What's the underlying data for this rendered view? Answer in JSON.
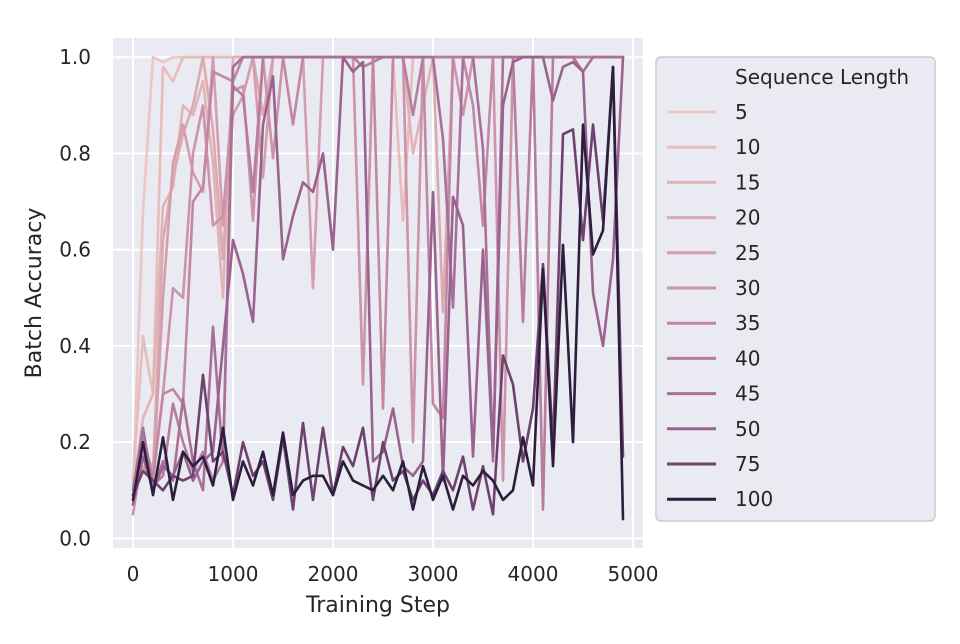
{
  "chart_data": {
    "type": "line",
    "title": "",
    "xlabel": "Training Step",
    "ylabel": "Batch Accuracy",
    "xlim": [
      -200,
      5100
    ],
    "ylim": [
      -0.02,
      1.04
    ],
    "xticks": [
      0,
      1000,
      2000,
      3000,
      4000,
      5000
    ],
    "xtick_labels": [
      "0",
      "1000",
      "2000",
      "3000",
      "4000",
      "5000"
    ],
    "yticks": [
      0.0,
      0.2,
      0.4,
      0.6,
      0.8,
      1.0
    ],
    "ytick_labels": [
      "0.0",
      "0.2",
      "0.4",
      "0.6",
      "0.8",
      "1.0"
    ],
    "grid": true,
    "legend_title": "Sequence Length",
    "legend_position": "outside-right",
    "x": [
      0,
      100,
      200,
      300,
      400,
      500,
      600,
      700,
      800,
      900,
      1000,
      1100,
      1200,
      1300,
      1400,
      1500,
      1600,
      1700,
      1800,
      1900,
      2000,
      2100,
      2200,
      2300,
      2400,
      2500,
      2600,
      2700,
      2800,
      2900,
      3000,
      3100,
      3200,
      3300,
      3400,
      3500,
      3600,
      3700,
      3800,
      3900,
      4000,
      4100,
      4200,
      4300,
      4400,
      4500,
      4600,
      4700,
      4800,
      4900
    ],
    "series": [
      {
        "name": "5",
        "color": "#ebc6c2",
        "values": [
          0.1,
          0.68,
          1.0,
          0.99,
          1.0,
          1.0,
          1.0,
          1.0,
          1.0,
          1.0,
          1.0,
          1.0,
          1.0,
          1.0,
          1.0,
          1.0,
          1.0,
          1.0,
          1.0,
          1.0,
          1.0,
          1.0,
          1.0,
          1.0,
          1.0,
          1.0,
          1.0,
          1.0,
          1.0,
          1.0,
          1.0,
          1.0,
          1.0,
          1.0,
          1.0,
          1.0,
          1.0,
          1.0,
          1.0,
          1.0,
          1.0,
          1.0,
          1.0,
          1.0,
          1.0,
          1.0,
          1.0,
          1.0,
          1.0,
          1.0
        ]
      },
      {
        "name": "10",
        "color": "#e6bdbb",
        "values": [
          0.12,
          0.42,
          0.3,
          0.98,
          0.95,
          1.0,
          1.0,
          1.0,
          1.0,
          1.0,
          1.0,
          1.0,
          1.0,
          1.0,
          1.0,
          1.0,
          1.0,
          1.0,
          1.0,
          1.0,
          1.0,
          1.0,
          1.0,
          1.0,
          1.0,
          1.0,
          1.0,
          0.66,
          1.0,
          1.0,
          1.0,
          1.0,
          1.0,
          1.0,
          1.0,
          1.0,
          1.0,
          1.0,
          1.0,
          1.0,
          1.0,
          1.0,
          1.0,
          1.0,
          1.0,
          1.0,
          1.0,
          1.0,
          1.0,
          1.0
        ]
      },
      {
        "name": "15",
        "color": "#e1b3b5",
        "values": [
          0.1,
          0.25,
          0.3,
          0.69,
          0.73,
          0.9,
          0.88,
          0.95,
          0.78,
          0.5,
          1.0,
          1.0,
          1.0,
          1.0,
          1.0,
          1.0,
          1.0,
          1.0,
          1.0,
          1.0,
          1.0,
          1.0,
          1.0,
          1.0,
          1.0,
          1.0,
          1.0,
          1.0,
          0.8,
          0.9,
          1.0,
          1.0,
          1.0,
          1.0,
          1.0,
          1.0,
          1.0,
          1.0,
          1.0,
          1.0,
          1.0,
          1.0,
          1.0,
          1.0,
          1.0,
          1.0,
          1.0,
          1.0,
          1.0,
          1.0
        ]
      },
      {
        "name": "20",
        "color": "#dba9b0",
        "values": [
          0.11,
          0.2,
          0.14,
          0.62,
          0.75,
          0.84,
          0.9,
          1.0,
          0.85,
          0.58,
          0.95,
          1.0,
          1.0,
          0.88,
          1.0,
          1.0,
          1.0,
          1.0,
          1.0,
          1.0,
          1.0,
          1.0,
          1.0,
          1.0,
          1.0,
          1.0,
          1.0,
          1.0,
          1.0,
          1.0,
          1.0,
          0.47,
          1.0,
          1.0,
          1.0,
          1.0,
          1.0,
          1.0,
          1.0,
          1.0,
          1.0,
          1.0,
          1.0,
          1.0,
          1.0,
          1.0,
          1.0,
          1.0,
          1.0,
          1.0
        ]
      },
      {
        "name": "25",
        "color": "#d49ead",
        "values": [
          0.08,
          0.15,
          0.12,
          0.5,
          0.78,
          0.86,
          0.76,
          0.72,
          1.0,
          0.65,
          0.88,
          0.92,
          1.0,
          0.75,
          1.0,
          1.0,
          1.0,
          1.0,
          0.52,
          1.0,
          1.0,
          1.0,
          1.0,
          1.0,
          1.0,
          1.0,
          1.0,
          1.0,
          1.0,
          1.0,
          1.0,
          1.0,
          1.0,
          1.0,
          1.0,
          1.0,
          1.0,
          1.0,
          1.0,
          1.0,
          1.0,
          1.0,
          1.0,
          1.0,
          1.0,
          1.0,
          1.0,
          1.0,
          1.0,
          1.0
        ]
      },
      {
        "name": "30",
        "color": "#cc93a9",
        "values": [
          0.05,
          0.18,
          0.13,
          0.3,
          0.52,
          0.5,
          0.8,
          0.9,
          0.65,
          0.67,
          0.93,
          0.94,
          0.66,
          1.0,
          0.79,
          1.0,
          1.0,
          1.0,
          1.0,
          1.0,
          1.0,
          1.0,
          1.0,
          0.32,
          1.0,
          1.0,
          1.0,
          1.0,
          0.2,
          1.0,
          1.0,
          1.0,
          1.0,
          0.88,
          1.0,
          1.0,
          1.0,
          0.12,
          1.0,
          1.0,
          1.0,
          1.0,
          1.0,
          1.0,
          1.0,
          1.0,
          1.0,
          1.0,
          1.0,
          1.0
        ]
      },
      {
        "name": "35",
        "color": "#c287a3",
        "values": [
          0.07,
          0.22,
          0.12,
          0.3,
          0.31,
          0.28,
          0.7,
          0.73,
          0.97,
          0.96,
          0.95,
          1.0,
          1.0,
          1.0,
          1.0,
          1.0,
          0.86,
          1.0,
          1.0,
          1.0,
          1.0,
          1.0,
          1.0,
          1.0,
          1.0,
          0.27,
          1.0,
          1.0,
          1.0,
          1.0,
          0.28,
          0.25,
          1.0,
          1.0,
          0.9,
          0.65,
          1.0,
          1.0,
          1.0,
          1.0,
          1.0,
          1.0,
          1.0,
          1.0,
          1.0,
          1.0,
          1.0,
          1.0,
          1.0,
          1.0
        ]
      },
      {
        "name": "40",
        "color": "#b77c9e",
        "values": [
          0.09,
          0.2,
          0.11,
          0.13,
          0.28,
          0.2,
          0.14,
          0.18,
          0.12,
          0.16,
          0.94,
          0.92,
          0.72,
          1.0,
          1.0,
          1.0,
          1.0,
          1.0,
          1.0,
          1.0,
          1.0,
          1.0,
          1.0,
          0.98,
          0.99,
          1.0,
          1.0,
          1.0,
          0.88,
          1.0,
          1.0,
          1.0,
          1.0,
          1.0,
          1.0,
          1.0,
          1.0,
          1.0,
          1.0,
          0.45,
          1.0,
          0.06,
          1.0,
          1.0,
          1.0,
          1.0,
          1.0,
          1.0,
          1.0,
          1.0
        ]
      },
      {
        "name": "45",
        "color": "#a97097",
        "values": [
          0.1,
          0.23,
          0.1,
          0.16,
          0.12,
          0.29,
          0.16,
          0.1,
          0.44,
          0.16,
          0.98,
          1.0,
          1.0,
          1.0,
          1.0,
          1.0,
          1.0,
          1.0,
          1.0,
          1.0,
          1.0,
          1.0,
          1.0,
          1.0,
          1.0,
          1.0,
          1.0,
          1.0,
          1.0,
          1.0,
          1.0,
          0.83,
          0.48,
          1.0,
          1.0,
          0.81,
          0.16,
          1.0,
          1.0,
          1.0,
          1.0,
          1.0,
          1.0,
          1.0,
          1.0,
          0.97,
          1.0,
          1.0,
          1.0,
          1.0
        ]
      },
      {
        "name": "50",
        "color": "#9a628e",
        "values": [
          0.07,
          0.17,
          0.1,
          0.15,
          0.13,
          0.18,
          0.12,
          0.16,
          0.18,
          0.4,
          0.62,
          0.55,
          0.45,
          0.86,
          0.96,
          0.58,
          0.67,
          0.74,
          0.72,
          0.8,
          0.6,
          1.0,
          0.97,
          0.99,
          0.16,
          0.18,
          0.27,
          0.15,
          0.13,
          0.16,
          0.72,
          0.12,
          0.71,
          0.65,
          0.17,
          0.6,
          0.17,
          0.9,
          0.99,
          1.0,
          1.0,
          1.0,
          0.91,
          0.98,
          0.99,
          0.97,
          0.51,
          0.4,
          0.58,
          1.0
        ]
      },
      {
        "name": "75",
        "color": "#6e426f",
        "values": [
          0.09,
          0.14,
          0.12,
          0.1,
          0.13,
          0.12,
          0.13,
          0.34,
          0.16,
          0.18,
          0.09,
          0.2,
          0.13,
          0.16,
          0.08,
          0.21,
          0.06,
          0.24,
          0.08,
          0.23,
          0.09,
          0.19,
          0.15,
          0.23,
          0.08,
          0.2,
          0.12,
          0.14,
          0.08,
          0.12,
          0.09,
          0.14,
          0.1,
          0.17,
          0.06,
          0.15,
          0.05,
          0.38,
          0.32,
          0.16,
          0.27,
          0.57,
          0.19,
          0.84,
          0.85,
          0.62,
          0.86,
          0.66,
          0.98,
          0.17
        ]
      },
      {
        "name": "100",
        "color": "#2d1e3e",
        "values": [
          0.08,
          0.2,
          0.09,
          0.21,
          0.08,
          0.18,
          0.15,
          0.17,
          0.11,
          0.23,
          0.08,
          0.16,
          0.11,
          0.18,
          0.09,
          0.22,
          0.09,
          0.12,
          0.13,
          0.13,
          0.09,
          0.16,
          0.12,
          0.11,
          0.1,
          0.13,
          0.1,
          0.16,
          0.06,
          0.15,
          0.08,
          0.13,
          0.06,
          0.13,
          0.11,
          0.14,
          0.12,
          0.08,
          0.1,
          0.21,
          0.11,
          0.56,
          0.15,
          0.61,
          0.2,
          0.86,
          0.59,
          0.64,
          0.98,
          0.04
        ]
      }
    ]
  }
}
